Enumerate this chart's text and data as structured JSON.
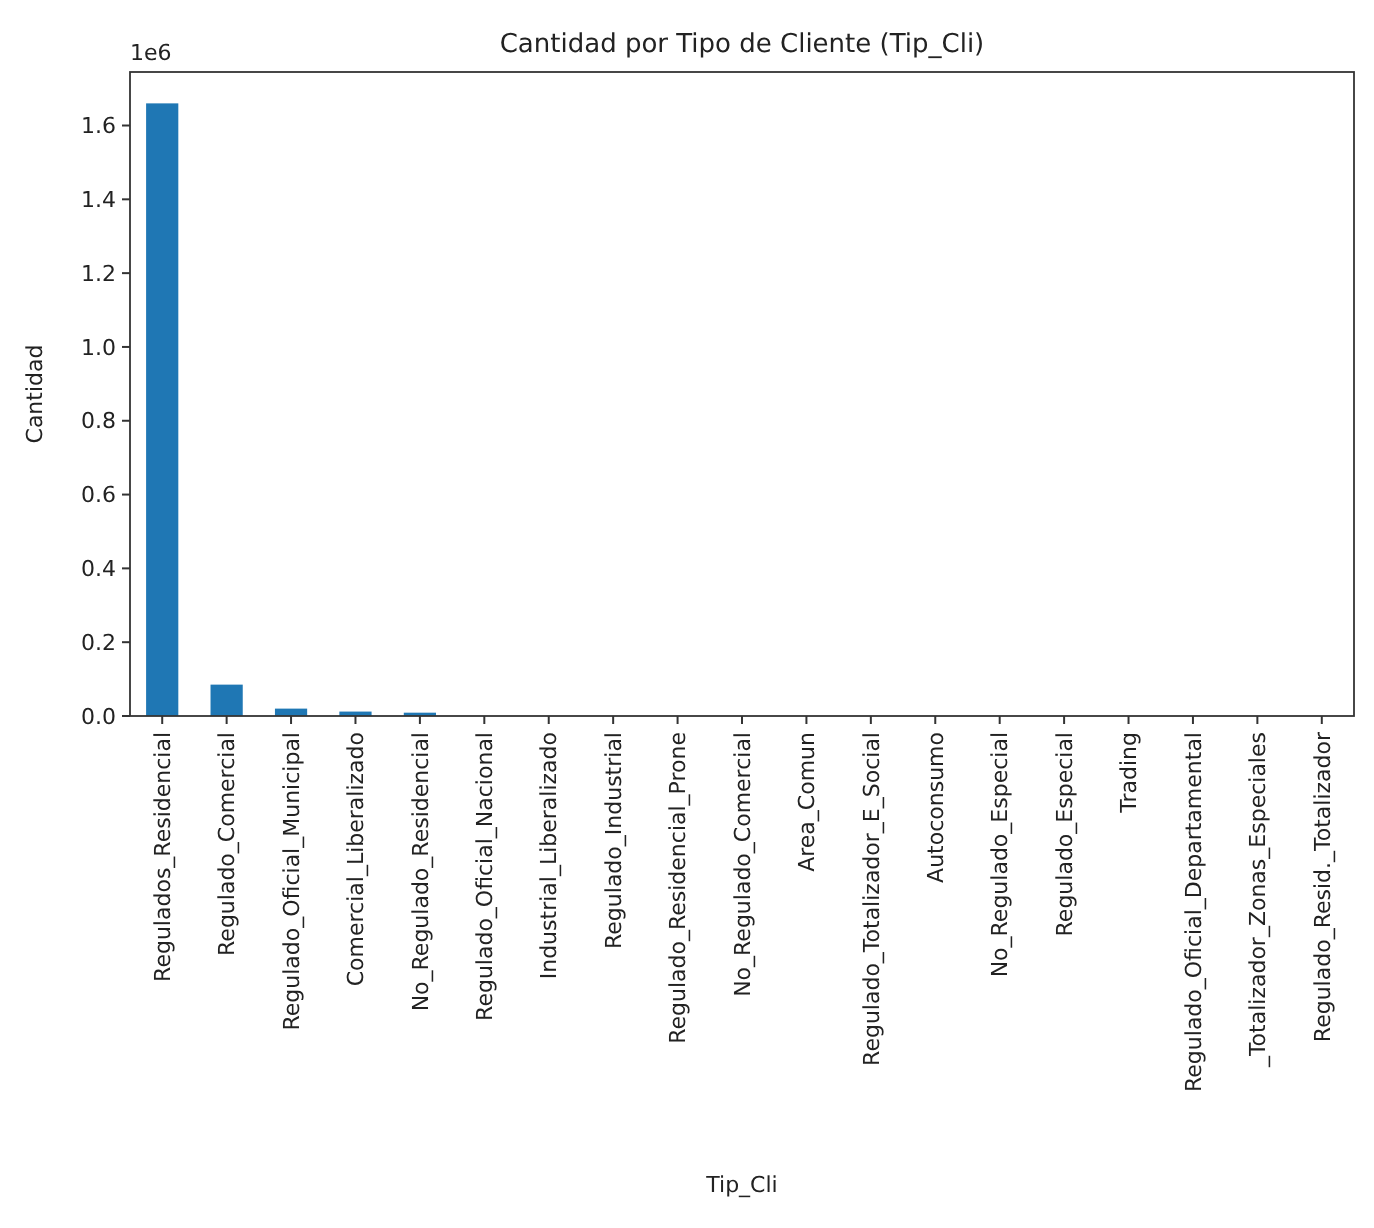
{
  "chart_data": {
    "type": "bar",
    "title": "Cantidad por Tipo de Cliente (Tip_Cli)",
    "xlabel": "Tip_Cli",
    "ylabel": "Cantidad",
    "annotations": [
      "1e6"
    ],
    "categories": [
      "Regulados_Residencial",
      "Regulado_Comercial",
      "Regulado_Oficial_Municipal",
      "Comercial_Liberalizado",
      "No_Regulado_Residencial",
      "Regulado_Oficial_Nacional",
      "Industrial_Liberalizado",
      "Regulado_Industrial",
      "Regulado_Residencial_Prone",
      "No_Regulado_Comercial",
      "Area_Comun",
      "Regulado_Totalizador_E_Social",
      "Autoconsumo",
      "No_Regulado_Especial",
      "Regulado_Especial",
      "Trading",
      "Regulado_Oficial_Departamental",
      "_Totalizador_Zonas_Especiales",
      "Regulado_Resid._Totalizador"
    ],
    "values": [
      1.66,
      0.085,
      0.02,
      0.012,
      0.009,
      0,
      0,
      0,
      0,
      0,
      0,
      0,
      0,
      0,
      0,
      0,
      0,
      0,
      0
    ],
    "color": "#1f77b4",
    "ylim": [
      0,
      1.745
    ],
    "yticks": [
      {
        "value": 0,
        "label": "0.0"
      },
      0.2,
      0.4,
      0.6,
      0.8,
      {
        "value": 1,
        "label": "1.0"
      },
      1.2,
      1.4,
      1.6
    ],
    "grid": false
  }
}
